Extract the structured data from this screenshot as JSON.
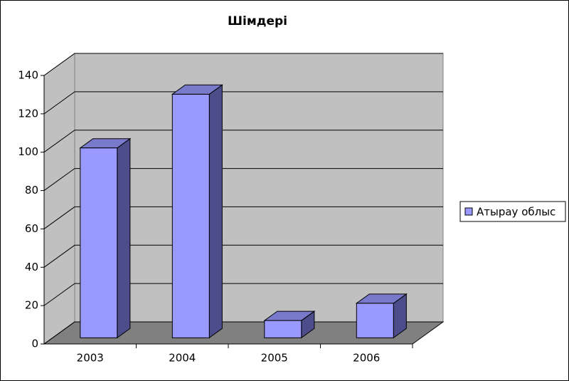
{
  "chart_data": {
    "type": "bar3d",
    "title": "Шімдері",
    "categories": [
      "2003",
      "2004",
      "2005",
      "2006"
    ],
    "series": [
      {
        "name": "Атырау облыс",
        "color": "#9999ff",
        "values": [
          99,
          127,
          9,
          18
        ]
      }
    ],
    "ylim": [
      0,
      140
    ],
    "yticks": [
      0,
      20,
      40,
      60,
      80,
      100,
      120,
      140
    ],
    "grid": true,
    "legend": "right"
  }
}
